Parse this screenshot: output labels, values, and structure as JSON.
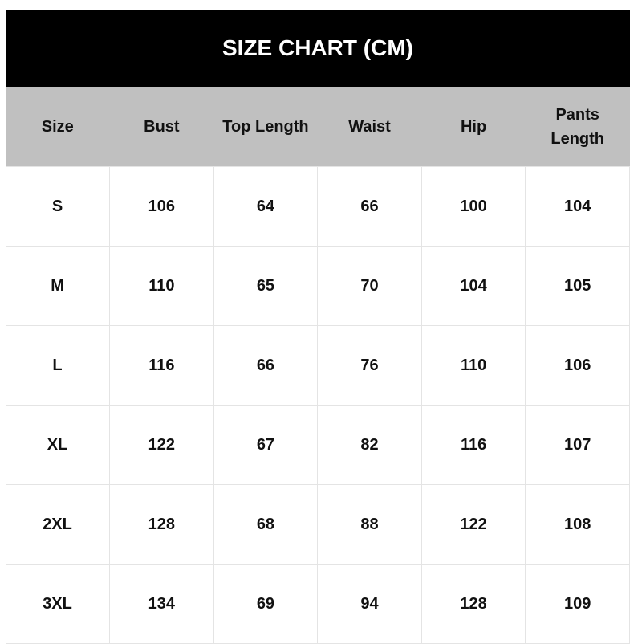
{
  "title": "SIZE CHART (CM)",
  "headers": [
    "Size",
    "Bust",
    "Top Length",
    "Waist",
    "Hip",
    "Pants Length"
  ],
  "rows": [
    [
      "S",
      "106",
      "64",
      "66",
      "100",
      "104"
    ],
    [
      "M",
      "110",
      "65",
      "70",
      "104",
      "105"
    ],
    [
      "L",
      "116",
      "66",
      "76",
      "110",
      "106"
    ],
    [
      "XL",
      "122",
      "67",
      "82",
      "116",
      "107"
    ],
    [
      "2XL",
      "128",
      "68",
      "88",
      "122",
      "108"
    ],
    [
      "3XL",
      "134",
      "69",
      "94",
      "128",
      "109"
    ]
  ],
  "colors": {
    "title_bg": "#000000",
    "header_bg": "#c0c0c0",
    "grid": "#e4e4e4"
  }
}
